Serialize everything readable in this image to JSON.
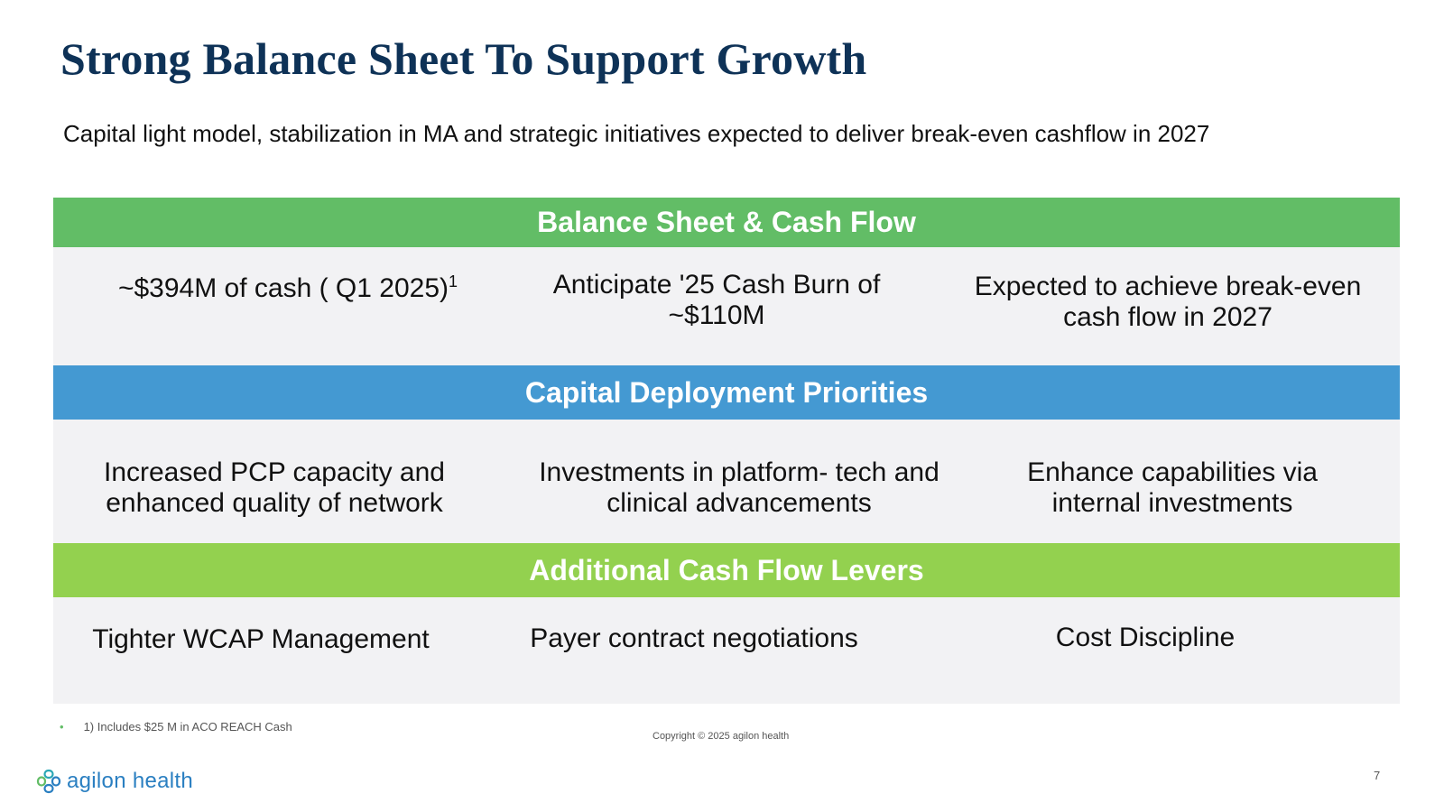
{
  "slide": {
    "title": "Strong Balance Sheet To Support Growth",
    "subtitle": "Capital light model, stabilization in MA and strategic initiatives expected to deliver break-even cashflow in 2027"
  },
  "sections": [
    {
      "header": "Balance Sheet & Cash Flow",
      "color": "#62bd66",
      "items": [
        {
          "line1": "~$394M of cash ( Q1 2025)",
          "sup": "1"
        },
        {
          "line1": "Anticipate '25  Cash Burn of",
          "line2": "~$110M"
        },
        {
          "line1": "Expected to achieve break-even",
          "line2": "cash flow in 2027"
        }
      ]
    },
    {
      "header": "Capital Deployment Priorities",
      "color": "#4499d2",
      "items": [
        {
          "line1": "Increased PCP capacity and",
          "line2": "enhanced quality of network"
        },
        {
          "line1": "Investments in platform-  tech and",
          "line2": "clinical advancements"
        },
        {
          "line1": "Enhance capabilities via",
          "line2": "internal investments"
        }
      ]
    },
    {
      "header": "Additional Cash Flow Levers",
      "color": "#93d14f",
      "items": [
        {
          "line1": "Tighter WCAP Management"
        },
        {
          "line1": "Payer contract negotiations"
        },
        {
          "line1": "Cost Discipline"
        }
      ]
    }
  ],
  "footer": {
    "footnote_bullet": "•",
    "footnote": "1) Includes $25 M in ACO REACH Cash",
    "copyright": "Copyright © 2025 agilon health",
    "logo_text": "agilon health",
    "page_number": "7"
  }
}
